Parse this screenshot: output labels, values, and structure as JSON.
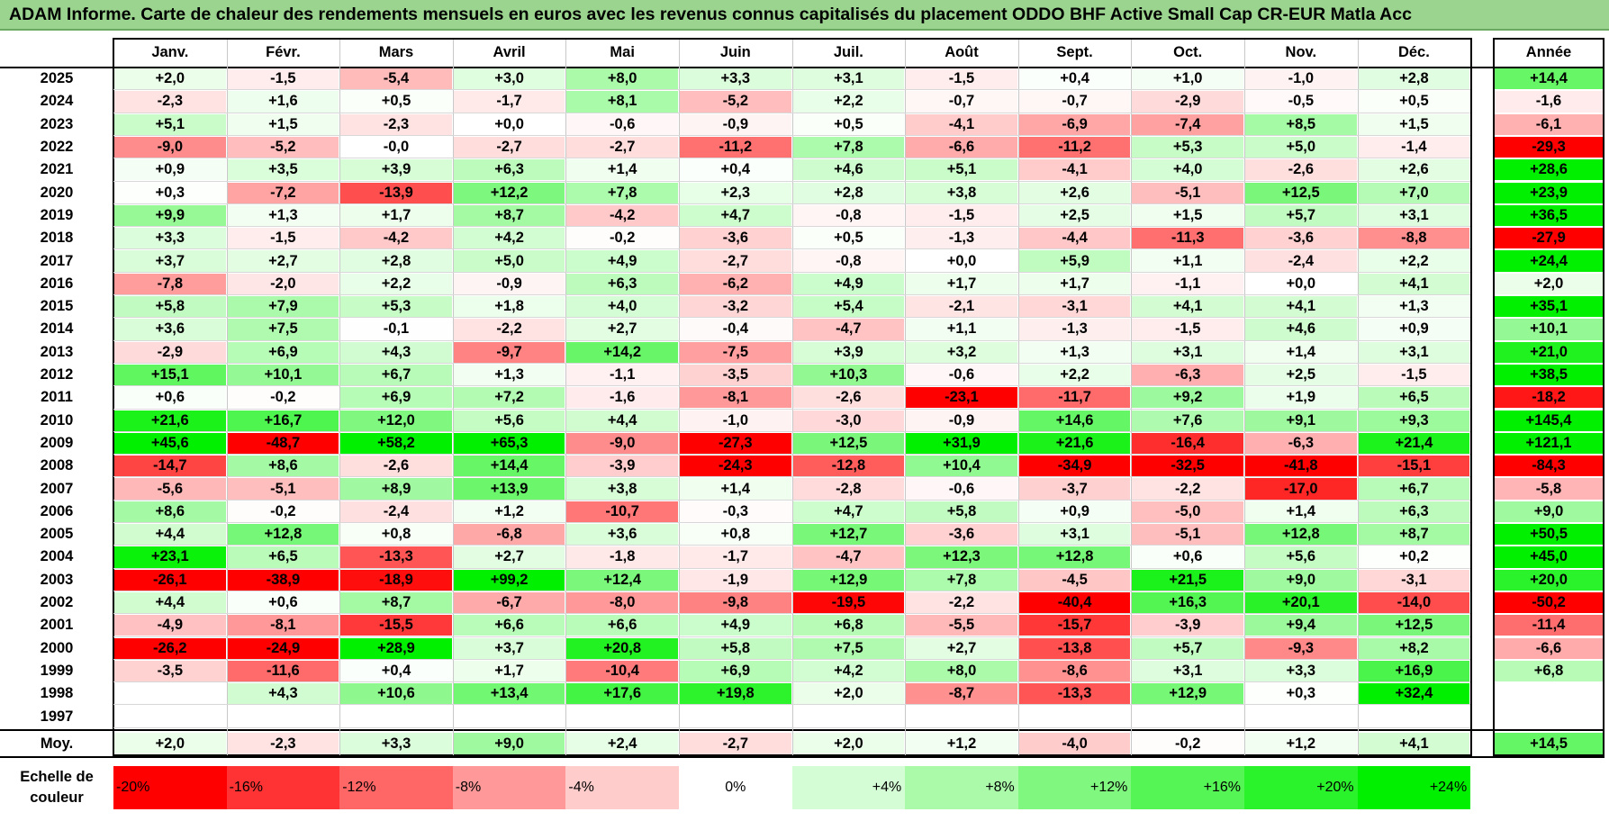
{
  "title": "ADAM Informe. Carte de chaleur des rendements mensuels en euros avec les revenus connus capitalisés du placement ODDO BHF Active Small Cap CR-EUR Matla Acc",
  "chart_data": {
    "type": "heatmap",
    "columns": [
      "Janv.",
      "Févr.",
      "Mars",
      "Avril",
      "Mai",
      "Juin",
      "Juil.",
      "Août",
      "Sept.",
      "Oct.",
      "Nov.",
      "Déc."
    ],
    "annual_header": "Année",
    "rows": [
      {
        "year": "2025",
        "values": [
          "+2,0",
          "-1,5",
          "-5,4",
          "+3,0",
          "+8,0",
          "+3,3",
          "+3,1",
          "-1,5",
          "+0,4",
          "+1,0",
          "-1,0",
          "+2,8"
        ],
        "annual": "+14,4"
      },
      {
        "year": "2024",
        "values": [
          "-2,3",
          "+1,6",
          "+0,5",
          "-1,7",
          "+8,1",
          "-5,2",
          "+2,2",
          "-0,7",
          "-0,7",
          "-2,9",
          "-0,5",
          "+0,5"
        ],
        "annual": "-1,6"
      },
      {
        "year": "2023",
        "values": [
          "+5,1",
          "+1,5",
          "-2,3",
          "+0,0",
          "-0,6",
          "-0,9",
          "+0,5",
          "-4,1",
          "-6,9",
          "-7,4",
          "+8,5",
          "+1,5"
        ],
        "annual": "-6,1"
      },
      {
        "year": "2022",
        "values": [
          "-9,0",
          "-5,2",
          "-0,0",
          "-2,7",
          "-2,7",
          "-11,2",
          "+7,8",
          "-6,6",
          "-11,2",
          "+5,3",
          "+5,0",
          "-1,4"
        ],
        "annual": "-29,3"
      },
      {
        "year": "2021",
        "values": [
          "+0,9",
          "+3,5",
          "+3,9",
          "+6,3",
          "+1,4",
          "+0,4",
          "+4,6",
          "+5,1",
          "-4,1",
          "+4,0",
          "-2,6",
          "+2,6"
        ],
        "annual": "+28,6"
      },
      {
        "year": "2020",
        "values": [
          "+0,3",
          "-7,2",
          "-13,9",
          "+12,2",
          "+7,8",
          "+2,3",
          "+2,8",
          "+3,8",
          "+2,6",
          "-5,1",
          "+12,5",
          "+7,0"
        ],
        "annual": "+23,9"
      },
      {
        "year": "2019",
        "values": [
          "+9,9",
          "+1,3",
          "+1,7",
          "+8,7",
          "-4,2",
          "+4,7",
          "-0,8",
          "-1,5",
          "+2,5",
          "+1,5",
          "+5,7",
          "+3,1"
        ],
        "annual": "+36,5"
      },
      {
        "year": "2018",
        "values": [
          "+3,3",
          "-1,5",
          "-4,2",
          "+4,2",
          "-0,2",
          "-3,6",
          "+0,5",
          "-1,3",
          "-4,4",
          "-11,3",
          "-3,6",
          "-8,8"
        ],
        "annual": "-27,9"
      },
      {
        "year": "2017",
        "values": [
          "+3,7",
          "+2,7",
          "+2,8",
          "+5,0",
          "+4,9",
          "-2,7",
          "-0,8",
          "+0,0",
          "+5,9",
          "+1,1",
          "-2,4",
          "+2,2"
        ],
        "annual": "+24,4"
      },
      {
        "year": "2016",
        "values": [
          "-7,8",
          "-2,0",
          "+2,2",
          "-0,9",
          "+6,3",
          "-6,2",
          "+4,9",
          "+1,7",
          "+1,7",
          "-1,1",
          "+0,0",
          "+4,1"
        ],
        "annual": "+2,0"
      },
      {
        "year": "2015",
        "values": [
          "+5,8",
          "+7,9",
          "+5,3",
          "+1,8",
          "+4,0",
          "-3,2",
          "+5,4",
          "-2,1",
          "-3,1",
          "+4,1",
          "+4,1",
          "+1,3"
        ],
        "annual": "+35,1"
      },
      {
        "year": "2014",
        "values": [
          "+3,6",
          "+7,5",
          "-0,1",
          "-2,2",
          "+2,7",
          "-0,4",
          "-4,7",
          "+1,1",
          "-1,3",
          "-1,5",
          "+4,6",
          "+0,9"
        ],
        "annual": "+10,1"
      },
      {
        "year": "2013",
        "values": [
          "-2,9",
          "+6,9",
          "+4,3",
          "-9,7",
          "+14,2",
          "-7,5",
          "+3,9",
          "+3,2",
          "+1,3",
          "+3,1",
          "+1,4",
          "+3,1"
        ],
        "annual": "+21,0"
      },
      {
        "year": "2012",
        "values": [
          "+15,1",
          "+10,1",
          "+6,7",
          "+1,3",
          "-1,1",
          "-3,5",
          "+10,3",
          "-0,6",
          "+2,2",
          "-6,3",
          "+2,5",
          "-1,5"
        ],
        "annual": "+38,5"
      },
      {
        "year": "2011",
        "values": [
          "+0,6",
          "-0,2",
          "+6,9",
          "+7,2",
          "-1,6",
          "-8,1",
          "-2,6",
          "-23,1",
          "-11,7",
          "+9,2",
          "+1,9",
          "+6,5"
        ],
        "annual": "-18,2"
      },
      {
        "year": "2010",
        "values": [
          "+21,6",
          "+16,7",
          "+12,0",
          "+5,6",
          "+4,4",
          "-1,0",
          "-3,0",
          "-0,9",
          "+14,6",
          "+7,6",
          "+9,1",
          "+9,3"
        ],
        "annual": "+145,4"
      },
      {
        "year": "2009",
        "values": [
          "+45,6",
          "-48,7",
          "+58,2",
          "+65,3",
          "-9,0",
          "-27,3",
          "+12,5",
          "+31,9",
          "+21,6",
          "-16,4",
          "-6,3",
          "+21,4"
        ],
        "annual": "+121,1"
      },
      {
        "year": "2008",
        "values": [
          "-14,7",
          "+8,6",
          "-2,6",
          "+14,4",
          "-3,9",
          "-24,3",
          "-12,8",
          "+10,4",
          "-34,9",
          "-32,5",
          "-41,8",
          "-15,1"
        ],
        "annual": "-84,3"
      },
      {
        "year": "2007",
        "values": [
          "-5,6",
          "-5,1",
          "+8,9",
          "+13,9",
          "+3,8",
          "+1,4",
          "-2,8",
          "-0,6",
          "-3,7",
          "-2,2",
          "-17,0",
          "+6,7"
        ],
        "annual": "-5,8"
      },
      {
        "year": "2006",
        "values": [
          "+8,6",
          "-0,2",
          "-2,4",
          "+1,2",
          "-10,7",
          "-0,3",
          "+4,7",
          "+5,8",
          "+0,9",
          "-5,0",
          "+1,4",
          "+6,3"
        ],
        "annual": "+9,0"
      },
      {
        "year": "2005",
        "values": [
          "+4,4",
          "+12,8",
          "+0,8",
          "-6,8",
          "+3,6",
          "+0,8",
          "+12,7",
          "-3,6",
          "+3,1",
          "-5,1",
          "+12,8",
          "+8,7"
        ],
        "annual": "+50,5"
      },
      {
        "year": "2004",
        "values": [
          "+23,1",
          "+6,5",
          "-13,3",
          "+2,7",
          "-1,8",
          "-1,7",
          "-4,7",
          "+12,3",
          "+12,8",
          "+0,6",
          "+5,6",
          "+0,2"
        ],
        "annual": "+45,0"
      },
      {
        "year": "2003",
        "values": [
          "-26,1",
          "-38,9",
          "-18,9",
          "+99,2",
          "+12,4",
          "-1,9",
          "+12,9",
          "+7,8",
          "-4,5",
          "+21,5",
          "+9,0",
          "-3,1"
        ],
        "annual": "+20,0"
      },
      {
        "year": "2002",
        "values": [
          "+4,4",
          "+0,6",
          "+8,7",
          "-6,7",
          "-8,0",
          "-9,8",
          "-19,5",
          "-2,2",
          "-40,4",
          "+16,3",
          "+20,1",
          "-14,0"
        ],
        "annual": "-50,2"
      },
      {
        "year": "2001",
        "values": [
          "-4,9",
          "-8,1",
          "-15,5",
          "+6,6",
          "+6,6",
          "+4,9",
          "+6,8",
          "-5,5",
          "-15,7",
          "-3,9",
          "+9,4",
          "+12,5"
        ],
        "annual": "-11,4"
      },
      {
        "year": "2000",
        "values": [
          "-26,2",
          "-24,9",
          "+28,9",
          "+3,7",
          "+20,8",
          "+5,8",
          "+7,5",
          "+2,7",
          "-13,8",
          "+5,7",
          "-9,3",
          "+8,2"
        ],
        "annual": "-6,6"
      },
      {
        "year": "1999",
        "values": [
          "-3,5",
          "-11,6",
          "+0,4",
          "+1,7",
          "-10,4",
          "+6,9",
          "+4,2",
          "+8,0",
          "-8,6",
          "+3,1",
          "+3,3",
          "+16,9"
        ],
        "annual": "+6,8"
      },
      {
        "year": "1998",
        "values": [
          "",
          "+4,3",
          "+10,6",
          "+13,4",
          "+17,6",
          "+19,8",
          "+2,0",
          "-8,7",
          "-13,3",
          "+12,9",
          "+0,3",
          "+32,4"
        ],
        "annual": ""
      },
      {
        "year": "1997",
        "values": [
          "",
          "",
          "",
          "",
          "",
          "",
          "",
          "",
          "",
          "",
          "",
          ""
        ],
        "annual": ""
      }
    ],
    "average": {
      "label": "Moy.",
      "values": [
        "+2,0",
        "-2,3",
        "+3,3",
        "+9,0",
        "+2,4",
        "-2,7",
        "+2,0",
        "+1,2",
        "-4,0",
        "-0,2",
        "+1,2",
        "+4,1"
      ],
      "annual": "+14,5"
    },
    "scale": {
      "label": "Echelle de couleur",
      "items": [
        {
          "text": "-20%",
          "value": -20
        },
        {
          "text": "-16%",
          "value": -16
        },
        {
          "text": "-12%",
          "value": -12
        },
        {
          "text": "-8%",
          "value": -8
        },
        {
          "text": "-4%",
          "value": -4
        },
        {
          "text": "0%",
          "value": 0
        },
        {
          "text": "+4%",
          "value": 4
        },
        {
          "text": "+8%",
          "value": 8
        },
        {
          "text": "+12%",
          "value": 12
        },
        {
          "text": "+16%",
          "value": 16
        },
        {
          "text": "+20%",
          "value": 20
        },
        {
          "text": "+24%",
          "value": 24
        }
      ]
    },
    "colors": {
      "negative_max": "#ff0000",
      "positive_max": "#00f000",
      "neutral": "#ffffff",
      "title_bar": "#9bd48f"
    }
  }
}
